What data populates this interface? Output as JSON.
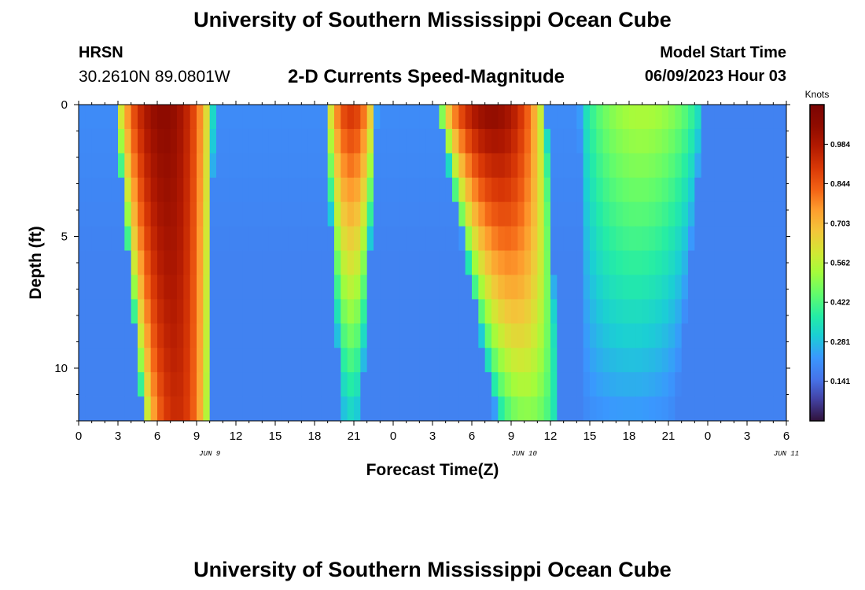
{
  "header": {
    "title": "University of Southern Mississippi Ocean Cube",
    "station": "HRSN",
    "coords": "30.2610N  89.0801W",
    "plot_title": "2-D Currents Speed-Magnitude",
    "start_label": "Model Start Time",
    "start_value": "06/09/2023 Hour 03"
  },
  "footer": {
    "title": "University of Southern Mississippi Ocean Cube"
  },
  "chart_data": {
    "type": "heatmap",
    "title": "2-D Currents Speed-Magnitude",
    "xlabel": "Forecast Time(Z)",
    "ylabel": "Depth (ft)",
    "x_tick_labels": [
      "0",
      "3",
      "6",
      "9",
      "12",
      "15",
      "18",
      "21",
      "0",
      "3",
      "6",
      "9",
      "12",
      "15",
      "18",
      "21",
      "0",
      "3",
      "6"
    ],
    "date_labels": [
      "JUN 9",
      "JUN 10",
      "JUN 11"
    ],
    "y_tick_labels": [
      "0",
      "5",
      "10"
    ],
    "ylim": [
      0,
      12
    ],
    "colorbar": {
      "label": "Knots",
      "tick_labels": [
        "0.984",
        "0.844",
        "0.703",
        "0.562",
        "0.422",
        "0.281",
        "0.141"
      ],
      "ticks": [
        0.984,
        0.844,
        0.703,
        0.562,
        0.422,
        0.281,
        0.141
      ],
      "range": [
        0.0,
        1.125
      ]
    },
    "depth_rows_ft": [
      0,
      1,
      2,
      3,
      4,
      5,
      6,
      7,
      8,
      9,
      10,
      11,
      12
    ],
    "time_hours_from_jun9_00z": [
      0,
      54
    ],
    "speed_features_knots": [
      {
        "peak_hour": 6.5,
        "surface_half_width_h": 3.8,
        "bottom_half_width_h": 2.6,
        "bottom_shift_h": 1.0,
        "peak": 1.06,
        "bottom_peak": 0.93
      },
      {
        "peak_hour": 20.8,
        "surface_half_width_h": 2.0,
        "bottom_half_width_h": 0.8,
        "bottom_shift_h": 0.0,
        "peak": 0.92,
        "bottom_peak": 0.3
      },
      {
        "peak_hour": 31.5,
        "surface_half_width_h": 4.2,
        "bottom_half_width_h": 2.4,
        "bottom_shift_h": 2.8,
        "peak": 1.06,
        "bottom_peak": 0.48
      },
      {
        "peak_hour": 43.0,
        "surface_half_width_h": 4.8,
        "bottom_half_width_h": 3.5,
        "bottom_shift_h": -1.0,
        "peak": 0.55,
        "bottom_peak": 0.22
      }
    ]
  }
}
